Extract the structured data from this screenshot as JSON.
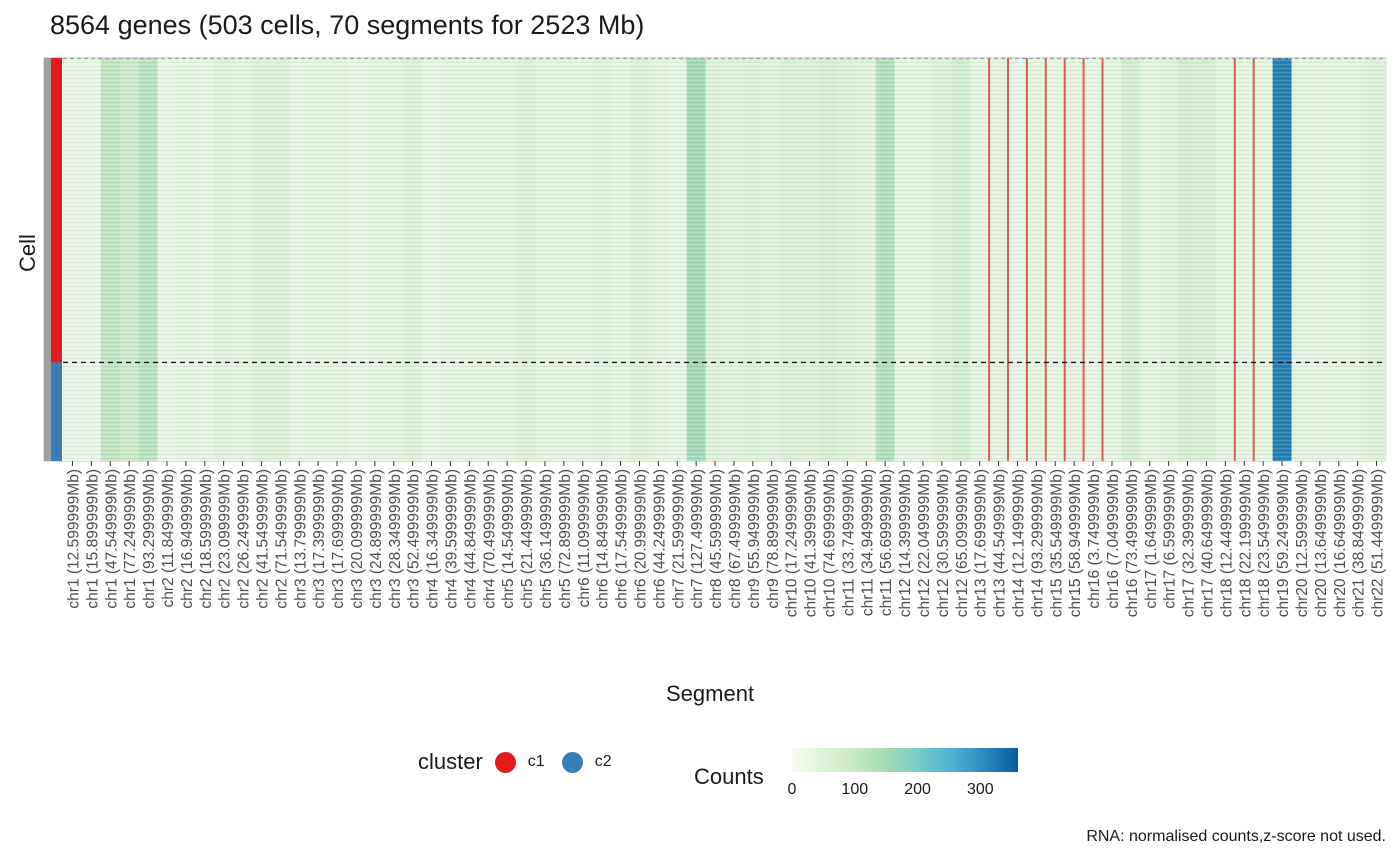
{
  "chart_data": {
    "type": "heatmap",
    "title": "8564 genes (503 cells, 70 segments for 2523 Mb)",
    "xlabel": "Segment",
    "ylabel": "Cell",
    "n_cells": 503,
    "categories": [
      "chr1 (12.599999Mb)",
      "chr1 (15.899999Mb)",
      "chr1 (47.549999Mb)",
      "chr1 (77.249999Mb)",
      "chr1 (93.299999Mb)",
      "chr2 (11.849999Mb)",
      "chr2 (16.949999Mb)",
      "chr2 (18.599999Mb)",
      "chr2 (23.099999Mb)",
      "chr2 (26.249999Mb)",
      "chr2 (41.549999Mb)",
      "chr2 (71.549999Mb)",
      "chr3 (13.799999Mb)",
      "chr3 (17.399999Mb)",
      "chr3 (17.699999Mb)",
      "chr3 (20.099999Mb)",
      "chr3 (24.899999Mb)",
      "chr3 (28.349999Mb)",
      "chr3 (52.499999Mb)",
      "chr4 (16.349999Mb)",
      "chr4 (39.599999Mb)",
      "chr4 (44.849999Mb)",
      "chr4 (70.499999Mb)",
      "chr5 (14.549999Mb)",
      "chr5 (21.449999Mb)",
      "chr5 (36.149999Mb)",
      "chr5 (72.899999Mb)",
      "chr6 (11.099999Mb)",
      "chr6 (14.849999Mb)",
      "chr6 (17.549999Mb)",
      "chr6 (20.999999Mb)",
      "chr6 (44.249999Mb)",
      "chr7 (21.599999Mb)",
      "chr7 (127.49999Mb)",
      "chr8 (45.599999Mb)",
      "chr8 (67.499999Mb)",
      "chr9 (55.949999Mb)",
      "chr9 (78.899999Mb)",
      "chr10 (17.249999Mb)",
      "chr10 (41.399999Mb)",
      "chr10 (74.699999Mb)",
      "chr11 (33.749999Mb)",
      "chr11 (34.949999Mb)",
      "chr11 (56.699999Mb)",
      "chr12 (14.399999Mb)",
      "chr12 (22.049999Mb)",
      "chr12 (30.599999Mb)",
      "chr12 (65.099999Mb)",
      "chr13 (17.699999Mb)",
      "chr13 (44.549999Mb)",
      "chr14 (12.149999Mb)",
      "chr14 (93.299999Mb)",
      "chr15 (35.549999Mb)",
      "chr15 (58.949999Mb)",
      "chr16 (3.749999Mb)",
      "chr16 (7.049999Mb)",
      "chr16 (73.499999Mb)",
      "chr17 (1.649999Mb)",
      "chr17 (6.599999Mb)",
      "chr17 (32.399999Mb)",
      "chr17 (40.649999Mb)",
      "chr18 (12.449999Mb)",
      "chr18 (22.199999Mb)",
      "chr18 (23.549999Mb)",
      "chr19 (59.249999Mb)",
      "chr20 (12.599999Mb)",
      "chr20 (13.649999Mb)",
      "chr20 (16.649999Mb)",
      "chr21 (38.849999Mb)",
      "chr22 (51.449999Mb)"
    ],
    "values": [
      30,
      30,
      120,
      95,
      130,
      30,
      40,
      35,
      50,
      45,
      60,
      55,
      35,
      40,
      45,
      35,
      40,
      45,
      55,
      35,
      45,
      40,
      40,
      45,
      55,
      40,
      45,
      40,
      50,
      40,
      55,
      45,
      35,
      160,
      55,
      50,
      60,
      50,
      65,
      55,
      70,
      55,
      50,
      140,
      40,
      45,
      55,
      80,
      40,
      45,
      35,
      40,
      35,
      45,
      35,
      40,
      80,
      45,
      50,
      75,
      70,
      40,
      45,
      45,
      320,
      40,
      45,
      40,
      45,
      55
    ],
    "clusters": [
      {
        "name": "c1",
        "color": "#e41a1c",
        "cells": 380
      },
      {
        "name": "c2",
        "color": "#377eb8",
        "cells": 123
      }
    ],
    "highlighted_boundaries_after": [
      48,
      49,
      50,
      51,
      52,
      53,
      54,
      61,
      62
    ],
    "highlight_color": "#d6604d",
    "color_scale": {
      "title": "Counts",
      "min": 0,
      "max": 360,
      "ticks": [
        "0",
        "100",
        "200",
        "300"
      ],
      "tick_values": [
        0,
        100,
        200,
        300
      ],
      "colors": [
        "#f7fcf0",
        "#e0f3db",
        "#ccebc5",
        "#a8ddb5",
        "#7bccc4",
        "#4eb3d3",
        "#2b8cbe",
        "#08589e"
      ]
    },
    "legend_title": "cluster",
    "legend_placement": "bottom",
    "footnote": "RNA: normalised counts,z-score not used."
  }
}
